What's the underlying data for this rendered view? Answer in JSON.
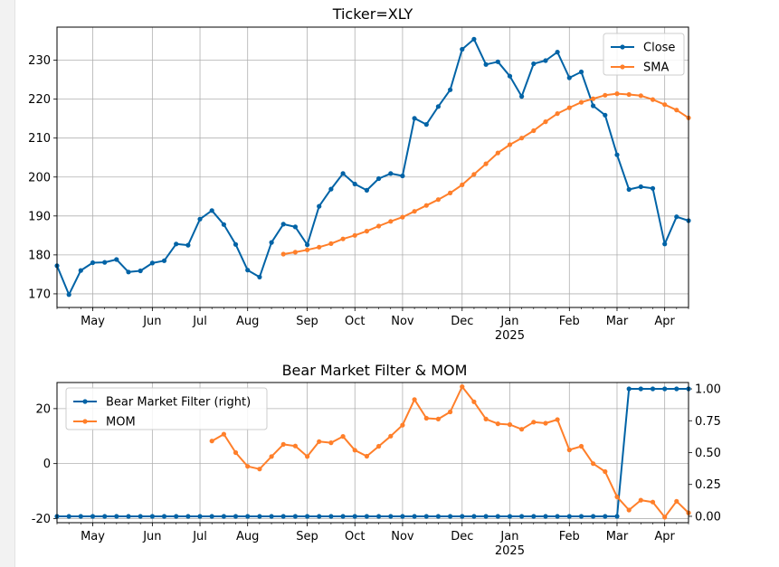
{
  "chart_data": [
    {
      "type": "line",
      "title": "Ticker=XLY",
      "xlabel": "",
      "ylabel": "",
      "ylim": [
        166.5,
        238.5
      ],
      "yticks": [
        170,
        180,
        190,
        200,
        210,
        220,
        230
      ],
      "x_index_range": [
        0,
        53
      ],
      "x_ticks": [
        {
          "label": "May",
          "i": 3
        },
        {
          "label": "Jun",
          "i": 8
        },
        {
          "label": "Jul",
          "i": 12
        },
        {
          "label": "Aug",
          "i": 16
        },
        {
          "label": "Sep",
          "i": 21
        },
        {
          "label": "Oct",
          "i": 25
        },
        {
          "label": "Nov",
          "i": 29
        },
        {
          "label": "Dec",
          "i": 34
        },
        {
          "label": "Jan",
          "i": 38
        },
        {
          "label": "Feb",
          "i": 43
        },
        {
          "label": "Mar",
          "i": 47
        },
        {
          "label": "Apr",
          "i": 51
        }
      ],
      "year_label": {
        "text": "2025",
        "i": 38
      },
      "legend_position": "top-right",
      "series": [
        {
          "name": "Close",
          "color": "#0063a6",
          "start_index": 0,
          "values": [
            177.2,
            169.8,
            176.0,
            178.0,
            178.1,
            178.8,
            175.6,
            175.9,
            177.9,
            178.5,
            182.8,
            182.5,
            189.2,
            191.4,
            187.8,
            182.7,
            176.1,
            174.3,
            183.2,
            187.9,
            187.2,
            182.6,
            192.5,
            196.9,
            200.9,
            198.2,
            196.6,
            199.6,
            200.9,
            200.3,
            215.1,
            213.5,
            218.1,
            222.4,
            232.8,
            235.4,
            228.9,
            229.6,
            225.9,
            220.7,
            229.1,
            229.9,
            232.1,
            225.5,
            227.0,
            218.3,
            215.9,
            205.7,
            196.8,
            197.5,
            197.1,
            182.8,
            189.8,
            188.8
          ]
        },
        {
          "name": "SMA",
          "color": "#ff7f2a",
          "start_index": 19,
          "values": [
            180.2,
            180.7,
            181.3,
            182.0,
            182.9,
            184.1,
            185.0,
            186.1,
            187.4,
            188.6,
            189.7,
            191.2,
            192.7,
            194.2,
            195.9,
            198.0,
            200.7,
            203.4,
            206.2,
            208.3,
            210.0,
            211.9,
            214.2,
            216.3,
            217.8,
            219.2,
            220.1,
            221.0,
            221.4,
            221.2,
            220.9,
            219.9,
            218.6,
            217.2,
            215.2
          ]
        }
      ]
    },
    {
      "type": "line",
      "title": "Bear Market Filter & MOM",
      "xlabel": "",
      "ylim": [
        -21.5,
        29.5
      ],
      "yticks": [
        -20,
        0,
        20
      ],
      "y2lim": [
        -0.05,
        1.05
      ],
      "y2ticks": [
        "0.00",
        "0.25",
        "0.50",
        "0.75",
        "1.00"
      ],
      "x_index_range": [
        0,
        53
      ],
      "x_ticks": [
        {
          "label": "May",
          "i": 3
        },
        {
          "label": "Jun",
          "i": 8
        },
        {
          "label": "Jul",
          "i": 12
        },
        {
          "label": "Aug",
          "i": 16
        },
        {
          "label": "Sep",
          "i": 21
        },
        {
          "label": "Oct",
          "i": 25
        },
        {
          "label": "Nov",
          "i": 29
        },
        {
          "label": "Dec",
          "i": 34
        },
        {
          "label": "Jan",
          "i": 38
        },
        {
          "label": "Feb",
          "i": 43
        },
        {
          "label": "Mar",
          "i": 47
        },
        {
          "label": "Apr",
          "i": 51
        }
      ],
      "year_label": {
        "text": "2025",
        "i": 38
      },
      "legend_position": "top-left",
      "series": [
        {
          "name": "Bear Market Filter (right)",
          "color": "#0063a6",
          "axis": "right",
          "start_index": 0,
          "values": [
            0,
            0,
            0,
            0,
            0,
            0,
            0,
            0,
            0,
            0,
            0,
            0,
            0,
            0,
            0,
            0,
            0,
            0,
            0,
            0,
            0,
            0,
            0,
            0,
            0,
            0,
            0,
            0,
            0,
            0,
            0,
            0,
            0,
            0,
            0,
            0,
            0,
            0,
            0,
            0,
            0,
            0,
            0,
            0,
            0,
            0,
            0,
            0,
            1,
            1,
            1,
            1,
            1,
            1
          ]
        },
        {
          "name": "MOM",
          "color": "#ff7f2a",
          "axis": "left",
          "start_index": 13,
          "values": [
            8.2,
            10.7,
            4.0,
            -1.0,
            -2.0,
            2.6,
            7.0,
            6.4,
            2.6,
            8.0,
            7.6,
            9.9,
            4.9,
            2.7,
            6.3,
            10.0,
            14.0,
            23.3,
            16.5,
            16.2,
            18.8,
            28.0,
            22.5,
            16.2,
            14.5,
            14.2,
            12.5,
            15.1,
            14.7,
            16.0,
            5.0,
            6.3,
            0.0,
            -2.9,
            -12.1,
            -16.9,
            -13.3,
            -14.0,
            -19.5,
            -13.7,
            -17.9
          ]
        }
      ]
    }
  ]
}
